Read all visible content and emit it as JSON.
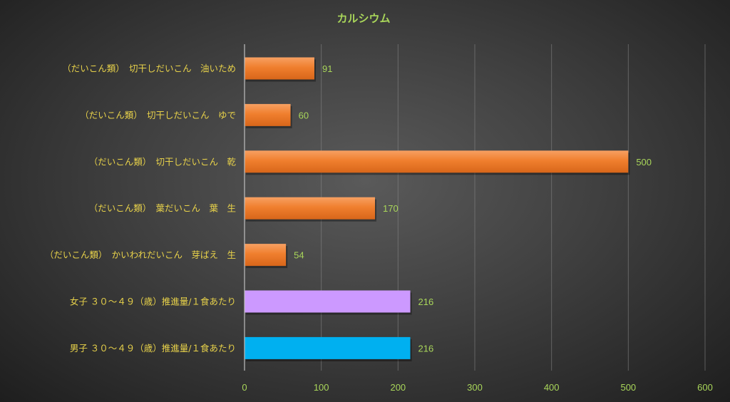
{
  "chart_data": {
    "type": "bar",
    "orientation": "horizontal",
    "title": "カルシウム",
    "categories": [
      "（だいこん類）　切干しだいこん　油いため",
      "（だいこん類）　切干しだいこん　ゆで",
      "（だいこん類）　切干しだいこん　乾",
      "（だいこん類）　葉だいこん　葉　生",
      "（だいこん類）　かいわれだいこん　芽ばえ　生",
      "女子 ３０～４９（歳）推進量/１食あたり",
      "男子 ３０～４９（歳）推進量/１食あたり"
    ],
    "values": [
      91,
      60,
      500,
      170,
      54,
      216,
      216
    ],
    "data_labels": [
      "91",
      "60",
      "500",
      "170",
      "54",
      "216",
      "216"
    ],
    "bar_colors": [
      "#f07f2e",
      "#f07f2e",
      "#f07f2e",
      "#f07f2e",
      "#f07f2e",
      "#cc99ff",
      "#00b0f0"
    ],
    "xlim": [
      0,
      600
    ],
    "x_ticks": [
      0,
      100,
      200,
      300,
      400,
      500,
      600
    ],
    "x_tick_labels": [
      "0",
      "100",
      "200",
      "300",
      "400",
      "500",
      "600"
    ],
    "grid": true,
    "legend": "none",
    "xlabel": "",
    "ylabel": ""
  },
  "colors": {
    "title": "#a9d65a",
    "category_label": "#e8d24a",
    "value_label": "#a9d65a",
    "tick_label": "#a9d65a"
  }
}
